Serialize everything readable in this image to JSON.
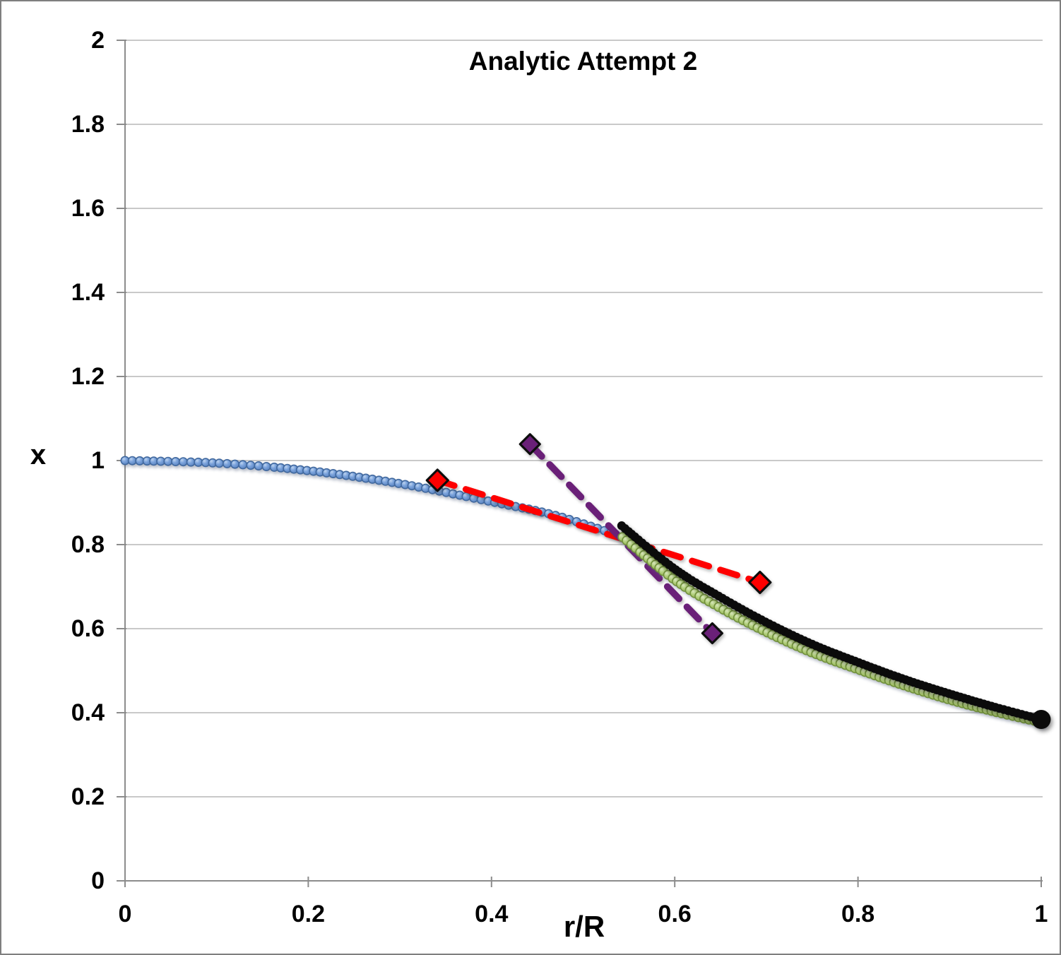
{
  "figure": {
    "background": "#ffffff",
    "border_color": "#7f7f7f",
    "gridline_color": "#c9c9c9",
    "axis_color": "#8c8c8c",
    "text_color": "#000000"
  },
  "chart_data": {
    "type": "scatter",
    "title": "Analytic Attempt 2",
    "xlabel": "r/R",
    "ylabel": "x",
    "xlim": [
      0,
      1
    ],
    "ylim": [
      0,
      2
    ],
    "grid": "horizontal-only",
    "legend": "none",
    "x_ticks": [
      {
        "value": 0,
        "label": "0"
      },
      {
        "value": 0.2,
        "label": "0.2"
      },
      {
        "value": 0.4,
        "label": "0.4"
      },
      {
        "value": 0.6,
        "label": "0.6"
      },
      {
        "value": 0.8,
        "label": "0.8"
      },
      {
        "value": 1,
        "label": "1"
      }
    ],
    "y_ticks": [
      {
        "value": 0,
        "label": "0"
      },
      {
        "value": 0.2,
        "label": "0.2"
      },
      {
        "value": 0.4,
        "label": "0.4"
      },
      {
        "value": 0.6,
        "label": "0.6"
      },
      {
        "value": 0.8,
        "label": "0.8"
      },
      {
        "value": 1,
        "label": "1"
      },
      {
        "value": 1.2,
        "label": "1.2"
      },
      {
        "value": 1.4,
        "label": "1.4"
      },
      {
        "value": 1.6,
        "label": "1.6"
      },
      {
        "value": 1.8,
        "label": "1.8"
      },
      {
        "value": 2,
        "label": "2"
      }
    ],
    "series": [
      {
        "id": "inner-solution-blue",
        "name": "inner region solution (blue dense markers)",
        "type": "dense-markers",
        "marker": "circle",
        "marker_radius": 5.7,
        "marker_spacing": 9.3,
        "fill_gradient": "blue",
        "edge_color": "#41699f",
        "points": [
          [
            0,
            1.0
          ],
          [
            0.1,
            0.994
          ],
          [
            0.2,
            0.976
          ],
          [
            0.3,
            0.945
          ],
          [
            0.4,
            0.902
          ],
          [
            0.467,
            0.871
          ],
          [
            0.535,
            0.825
          ]
        ]
      },
      {
        "id": "red-dashed",
        "name": "red dashed matching line",
        "type": "dashed-line",
        "marker": "diamond",
        "diamond_half": 15,
        "line_width": 9,
        "dash": "25 17",
        "color": "#fe0000",
        "marker_edge": "#0d0d0d",
        "points": [
          [
            0.341,
            0.953
          ],
          [
            0.693,
            0.71
          ]
        ]
      },
      {
        "id": "purple-dashed",
        "name": "purple dashed matching line",
        "type": "dashed-line",
        "marker": "diamond",
        "diamond_half": 14,
        "line_width": 9.5,
        "dash": "24 16",
        "color": "#6a2078",
        "marker_edge": "#0d0d0d",
        "points": [
          [
            0.442,
            1.039
          ],
          [
            0.641,
            0.589
          ]
        ]
      },
      {
        "id": "outer-solution-green",
        "name": "outer region solution (green dense markers)",
        "type": "dense-markers",
        "marker": "circle",
        "marker_radius": 6.2,
        "marker_spacing": 6.8,
        "fill_gradient": "green",
        "edge_color": "#71903c",
        "points": [
          [
            0.543,
            0.818
          ],
          [
            0.6,
            0.716
          ],
          [
            0.65,
            0.649
          ],
          [
            0.7,
            0.592
          ],
          [
            0.75,
            0.543
          ],
          [
            0.8,
            0.503
          ],
          [
            0.85,
            0.465
          ],
          [
            0.9,
            0.431
          ],
          [
            0.95,
            0.402
          ],
          [
            1.0,
            0.377
          ]
        ]
      },
      {
        "id": "outer-solution-black",
        "name": "outer region solution (thick black curve)",
        "type": "dense-markers-with-line",
        "marker": "circle",
        "marker_radius": 6.2,
        "marker_spacing": 5,
        "line_width": 10.5,
        "color": "#0b0b0b",
        "end_dot_radius": 13.5,
        "points": [
          [
            0.542,
            0.845
          ],
          [
            0.6,
            0.742
          ],
          [
            0.65,
            0.675
          ],
          [
            0.7,
            0.615
          ],
          [
            0.75,
            0.563
          ],
          [
            0.8,
            0.52
          ],
          [
            0.85,
            0.48
          ],
          [
            0.9,
            0.445
          ],
          [
            0.95,
            0.413
          ],
          [
            1.0,
            0.384
          ]
        ]
      }
    ]
  }
}
